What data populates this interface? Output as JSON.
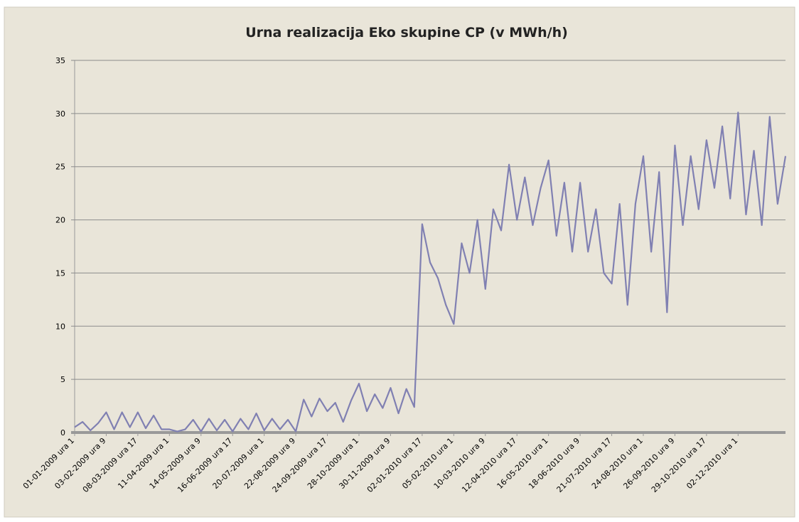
{
  "chart_data": {
    "type": "line",
    "title": "Urna realizacija Eko skupine CP (v MWh/h)",
    "categories": [
      "01-01-2009 ura 1",
      null,
      null,
      null,
      "03-02-2009 ura 9",
      null,
      null,
      null,
      "08-03-2009 ura 17",
      null,
      null,
      null,
      "11-04-2009 ura 1",
      null,
      null,
      null,
      "14-05-2009 ura 9",
      null,
      null,
      null,
      "16-06-2009 ura 17",
      null,
      null,
      null,
      "20-07-2009 ura 1",
      null,
      null,
      null,
      "22-08-2009 ura 9",
      null,
      null,
      null,
      "24-09-2009 ura 17",
      null,
      null,
      null,
      "28-10-2009 ura 1",
      null,
      null,
      null,
      "30-11-2009 ura 9",
      null,
      null,
      null,
      "02-01-2010 ura 17",
      null,
      null,
      null,
      "05-02-2010 ura 1",
      null,
      null,
      null,
      "10-03-2010 ura 9",
      null,
      null,
      null,
      "12-04-2010 ura 17",
      null,
      null,
      null,
      "16-05-2010 ura 1",
      null,
      null,
      null,
      "18-06-2010 ura 9",
      null,
      null,
      null,
      "21-07-2010 ura 17",
      null,
      null,
      null,
      "24-08-2010 ura 1",
      null,
      null,
      null,
      "26-09-2010 ura 9",
      null,
      null,
      null,
      "29-10-2010 ura 17",
      null,
      null,
      null,
      "02-12-2010 ura 1",
      null,
      null,
      null,
      null,
      null,
      null
    ],
    "series": [
      {
        "name": "Eko skupina CP",
        "color": "#8080b2",
        "values": [
          0.5,
          1,
          0.2,
          0.9,
          1.9,
          0.3,
          1.9,
          0.5,
          1.9,
          0.4,
          1.6,
          0.3,
          0.3,
          0.1,
          0.3,
          1.2,
          0.1,
          1.3,
          0.2,
          1.2,
          0.1,
          1.3,
          0.3,
          1.8,
          0.2,
          1.3,
          0.3,
          1.2,
          0.1,
          3.1,
          1.5,
          3.2,
          2,
          2.8,
          1,
          3,
          4.6,
          2,
          3.6,
          2.3,
          4.2,
          1.8,
          4.1,
          2.4,
          19.6,
          16,
          14.5,
          12,
          10.2,
          17.8,
          15,
          20,
          13.5,
          21,
          19,
          25.2,
          20,
          24,
          19.5,
          23,
          25.6,
          18.5,
          23.5,
          17,
          23.5,
          17,
          21,
          15,
          14,
          21.5,
          12,
          21.5,
          26,
          17,
          24.5,
          11.3,
          27,
          19.5,
          26,
          21,
          27.5,
          23,
          28.8,
          22,
          30.1,
          20.5,
          26.5,
          19.5,
          29.7,
          21.5,
          26
        ]
      }
    ],
    "ylim": [
      0,
      35
    ],
    "yticks": [
      0,
      5,
      10,
      15,
      20,
      25,
      30,
      35
    ],
    "grid": true
  }
}
